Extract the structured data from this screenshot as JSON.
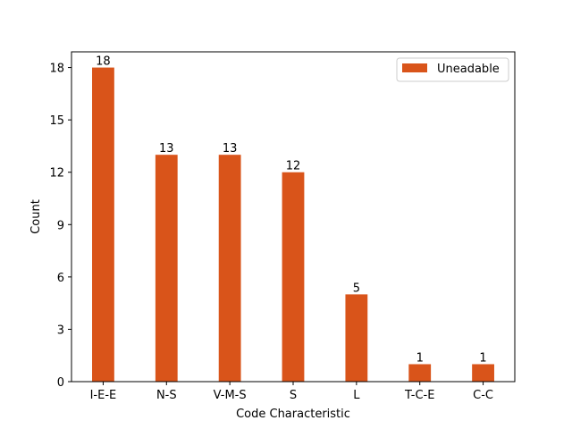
{
  "chart_data": {
    "type": "bar",
    "categories": [
      "I-E-E",
      "N-S",
      "V-M-S",
      "S",
      "L",
      "T-C-E",
      "C-C"
    ],
    "series": [
      {
        "name": "Uneadable",
        "values": [
          18,
          13,
          13,
          12,
          5,
          1,
          1
        ],
        "color": "#d9541a"
      }
    ],
    "xlabel": "Code Characteristic",
    "ylabel": "Count",
    "ylim": [
      0,
      18.9
    ],
    "yticks": [
      0,
      3,
      6,
      9,
      12,
      15,
      18
    ],
    "grid": false,
    "legend_position": "top-right",
    "data_labels": true
  }
}
